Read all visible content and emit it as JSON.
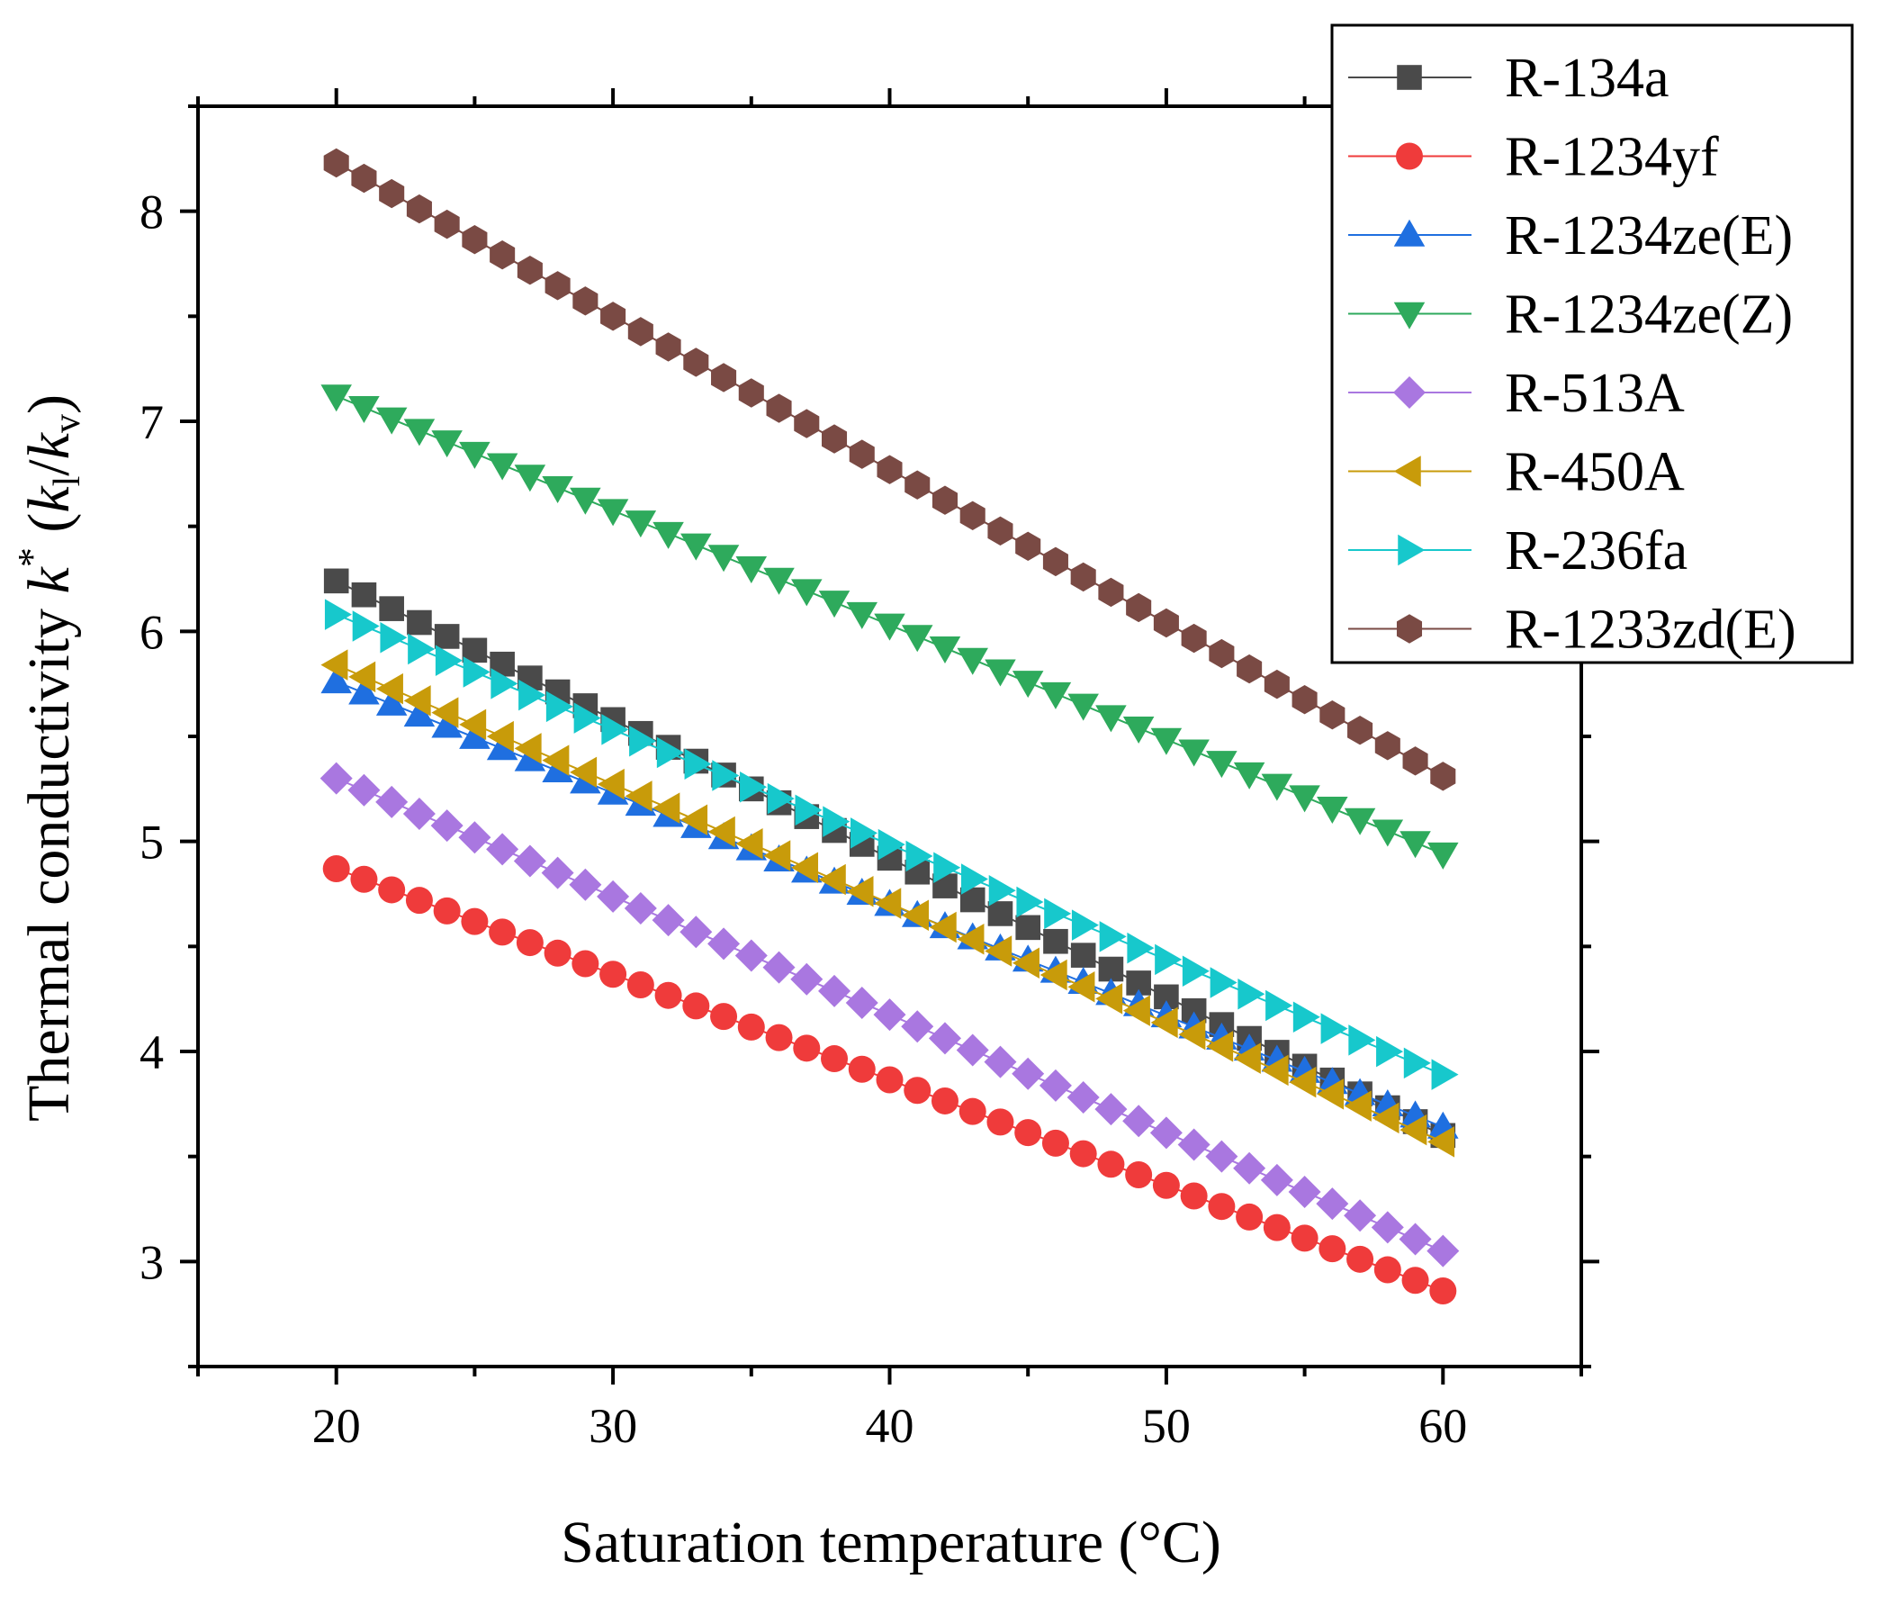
{
  "chart_data": {
    "type": "scatter",
    "xlabel": "Saturation temperature (°C)",
    "ylabel": {
      "prefix": "Thermal conductivity ",
      "k": "k",
      "star": "*",
      "open": " (",
      "kl": "k",
      "l": "l",
      "slash": "/",
      "kv": "k",
      "v": "v",
      "close": ")"
    },
    "xlim": [
      15,
      65
    ],
    "ylim": [
      2.5,
      8.5
    ],
    "xticks": [
      20,
      30,
      40,
      50,
      60
    ],
    "xtick_labels": [
      "20",
      "30",
      "40",
      "50",
      "60"
    ],
    "yticks": [
      3,
      4,
      5,
      6,
      7,
      8
    ],
    "ytick_labels": [
      "3",
      "4",
      "5",
      "6",
      "7",
      "8"
    ],
    "grid": false,
    "legend_position": "top-right",
    "x": [
      20,
      21,
      22,
      23,
      24,
      25,
      26,
      27,
      28,
      29,
      30,
      31,
      32,
      33,
      34,
      35,
      36,
      37,
      38,
      39,
      40,
      41,
      42,
      43,
      44,
      45,
      46,
      47,
      48,
      49,
      50,
      51,
      52,
      53,
      54,
      55,
      56,
      57,
      58,
      59,
      60
    ],
    "series": [
      {
        "name": "R-134a",
        "marker": "square",
        "color": "#4a4a4a",
        "y_start": 6.24,
        "y_end": 3.6
      },
      {
        "name": "R-1234yf",
        "marker": "circle",
        "color": "#ef3b3b",
        "y_start": 4.87,
        "y_end": 2.86
      },
      {
        "name": "R-1234ze(E)",
        "marker": "triangle-up",
        "color": "#1f6fe0",
        "y_start": 5.76,
        "y_end": 3.64
      },
      {
        "name": "R-1234ze(Z)",
        "marker": "triangle-down",
        "color": "#2eaa5c",
        "y_start": 7.12,
        "y_end": 4.94
      },
      {
        "name": "R-513A",
        "marker": "diamond",
        "color": "#a977e0",
        "y_start": 5.3,
        "y_end": 3.05
      },
      {
        "name": "R-450A",
        "marker": "triangle-left",
        "color": "#c89b0a",
        "y_start": 5.84,
        "y_end": 3.57
      },
      {
        "name": "R-236fa",
        "marker": "triangle-right",
        "color": "#17c8cc",
        "y_start": 6.08,
        "y_end": 3.89
      },
      {
        "name": "R-1233zd(E)",
        "marker": "hexagon",
        "color": "#7a4a44",
        "y_start": 8.23,
        "y_end": 5.31
      }
    ]
  }
}
